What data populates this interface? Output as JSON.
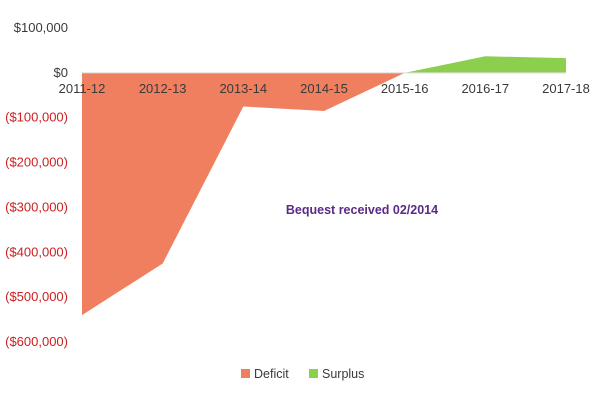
{
  "chart_data": {
    "type": "area",
    "categories": [
      "2011-12",
      "2012-13",
      "2013-14",
      "2014-15",
      "2015-16",
      "2016-17",
      "2017-18"
    ],
    "series": [
      {
        "name": "Deficit",
        "color": "#f07f5f",
        "values": [
          -540000,
          -425000,
          -75000,
          -85000,
          0,
          0,
          0
        ]
      },
      {
        "name": "Surplus",
        "color": "#8ccf4f",
        "values": [
          0,
          0,
          0,
          0,
          0,
          37000,
          33000
        ]
      }
    ],
    "y_ticks": [
      {
        "value": 100000,
        "label": "$100,000"
      },
      {
        "value": 0,
        "label": "$0"
      },
      {
        "value": -100000,
        "label": "($100,000)"
      },
      {
        "value": -200000,
        "label": "($200,000)"
      },
      {
        "value": -300000,
        "label": "($300,000)"
      },
      {
        "value": -400000,
        "label": "($400,000)"
      },
      {
        "value": -500000,
        "label": "($500,000)"
      },
      {
        "value": -600000,
        "label": "($600,000)"
      }
    ],
    "ylim": [
      -600000,
      100000
    ],
    "positive_tick_color": "#3a3a3a",
    "negative_tick_color": "#cc1f1f",
    "grid": false,
    "legend_position": "bottom-center",
    "annotation": {
      "text": "Bequest received 02/2014",
      "color": "#5b2a86"
    },
    "axis_line_color": "#d9d9d9"
  }
}
